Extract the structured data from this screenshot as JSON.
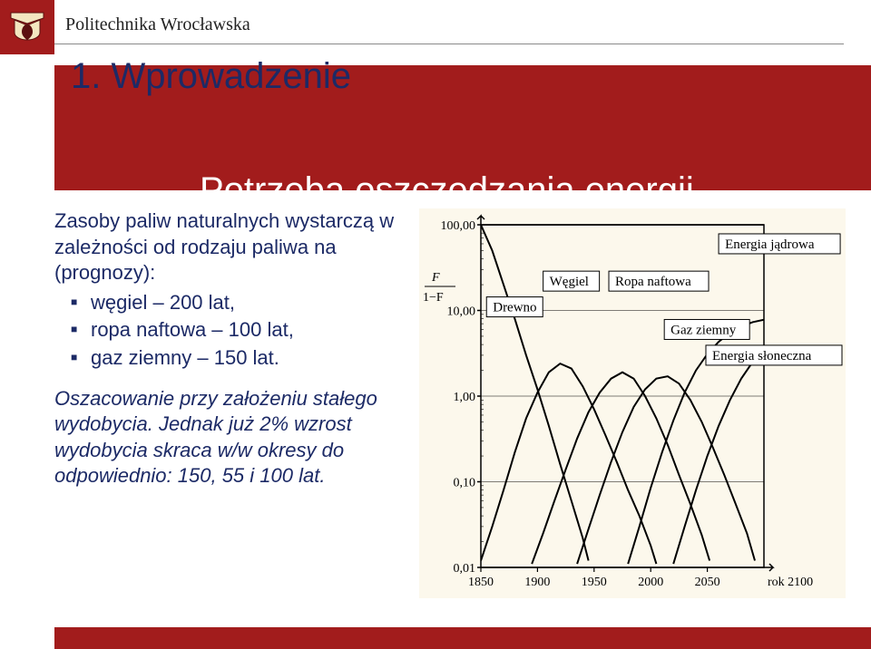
{
  "university": "Politechnika Wrocławska",
  "title": "1. Wprowadzenie",
  "subtitle": "Potrzeba oszczędzania energii",
  "colors": {
    "brand_red": "#a21c1c",
    "title_text": "#1c2a66",
    "body_text": "#1c2a66",
    "chart_bg": "#fcf8ec",
    "chart_border": "#000000"
  },
  "body": {
    "intro": "Zasoby paliw naturalnych wystarczą w zależności od rodzaju paliwa na (prognozy):",
    "bullets": [
      "węgiel – 200 lat,",
      "ropa naftowa – 100 lat,",
      "gaz ziemny – 150 lat."
    ],
    "note": "Oszacowanie przy założeniu stałego wydobycia. Jednak już 2% wzrost wydobycia skraca w/w okresy do odpowiednio: 150, 55 i 100 lat."
  },
  "chart": {
    "type": "line",
    "y_axis_title": "F / 1−F",
    "background_color": "#fcf8ec",
    "grid_color": "#000000",
    "line_color": "#000000",
    "line_width": 2,
    "font_family": "Times New Roman",
    "label_fontsize": 15,
    "tick_fontsize": 14,
    "x": {
      "min": 1850,
      "max": 2100,
      "ticks": [
        1850,
        1900,
        1950,
        2000,
        2050
      ],
      "last_label": "rok 2100"
    },
    "y": {
      "scale": "log",
      "min": 0.01,
      "max": 100,
      "ticks": [
        0.01,
        0.1,
        1.0,
        10.0,
        100.0
      ],
      "tick_labels": [
        "0,01",
        "0,10",
        "1,00",
        "10,00",
        "100,00"
      ]
    },
    "series": [
      {
        "name": "Drewno",
        "label_box": {
          "x": 1855,
          "y": 11
        },
        "points": [
          [
            1850,
            100
          ],
          [
            1860,
            50
          ],
          [
            1870,
            20
          ],
          [
            1880,
            8
          ],
          [
            1890,
            3
          ],
          [
            1900,
            1.2
          ],
          [
            1910,
            0.45
          ],
          [
            1920,
            0.16
          ],
          [
            1930,
            0.06
          ],
          [
            1940,
            0.022
          ],
          [
            1945,
            0.012
          ]
        ]
      },
      {
        "name": "Węgiel",
        "label_box": {
          "x": 1905,
          "y": 22
        },
        "points": [
          [
            1850,
            0.012
          ],
          [
            1860,
            0.03
          ],
          [
            1870,
            0.08
          ],
          [
            1880,
            0.22
          ],
          [
            1890,
            0.55
          ],
          [
            1900,
            1.1
          ],
          [
            1910,
            1.9
          ],
          [
            1920,
            2.4
          ],
          [
            1930,
            2.1
          ],
          [
            1940,
            1.3
          ],
          [
            1950,
            0.7
          ],
          [
            1960,
            0.35
          ],
          [
            1970,
            0.17
          ],
          [
            1980,
            0.08
          ],
          [
            1990,
            0.04
          ],
          [
            2000,
            0.018
          ],
          [
            2005,
            0.011
          ]
        ]
      },
      {
        "name": "Ropa naftowa",
        "label_box": {
          "x": 1963,
          "y": 22
        },
        "points": [
          [
            1895,
            0.011
          ],
          [
            1905,
            0.025
          ],
          [
            1915,
            0.06
          ],
          [
            1925,
            0.14
          ],
          [
            1935,
            0.32
          ],
          [
            1945,
            0.65
          ],
          [
            1955,
            1.1
          ],
          [
            1965,
            1.6
          ],
          [
            1975,
            1.9
          ],
          [
            1985,
            1.6
          ],
          [
            1995,
            1.0
          ],
          [
            2005,
            0.55
          ],
          [
            2015,
            0.27
          ],
          [
            2025,
            0.12
          ],
          [
            2035,
            0.055
          ],
          [
            2045,
            0.024
          ],
          [
            2052,
            0.012
          ]
        ]
      },
      {
        "name": "Gaz ziemny",
        "label_box": {
          "x": 2012,
          "y": 6
        },
        "points": [
          [
            1935,
            0.011
          ],
          [
            1945,
            0.028
          ],
          [
            1955,
            0.07
          ],
          [
            1965,
            0.17
          ],
          [
            1975,
            0.38
          ],
          [
            1985,
            0.75
          ],
          [
            1995,
            1.2
          ],
          [
            2005,
            1.6
          ],
          [
            2015,
            1.7
          ],
          [
            2025,
            1.4
          ],
          [
            2035,
            0.9
          ],
          [
            2045,
            0.5
          ],
          [
            2055,
            0.25
          ],
          [
            2065,
            0.12
          ],
          [
            2075,
            0.055
          ],
          [
            2085,
            0.025
          ],
          [
            2092,
            0.012
          ]
        ]
      },
      {
        "name": "Energia jądrowa",
        "label_box": {
          "x": 2060,
          "y": 60
        },
        "points": [
          [
            1980,
            0.011
          ],
          [
            1990,
            0.03
          ],
          [
            2000,
            0.085
          ],
          [
            2010,
            0.22
          ],
          [
            2020,
            0.52
          ],
          [
            2030,
            1.1
          ],
          [
            2040,
            2.0
          ],
          [
            2050,
            3.1
          ],
          [
            2060,
            4.3
          ],
          [
            2070,
            5.5
          ],
          [
            2080,
            6.5
          ],
          [
            2090,
            7.3
          ],
          [
            2100,
            7.8
          ]
        ]
      },
      {
        "name": "Energia słoneczna",
        "label_box": {
          "x": 2062,
          "y": 3
        },
        "points": [
          [
            2020,
            0.011
          ],
          [
            2030,
            0.03
          ],
          [
            2040,
            0.08
          ],
          [
            2050,
            0.2
          ],
          [
            2060,
            0.45
          ],
          [
            2070,
            0.9
          ],
          [
            2080,
            1.6
          ],
          [
            2090,
            2.5
          ],
          [
            2100,
            3.5
          ]
        ]
      }
    ]
  }
}
